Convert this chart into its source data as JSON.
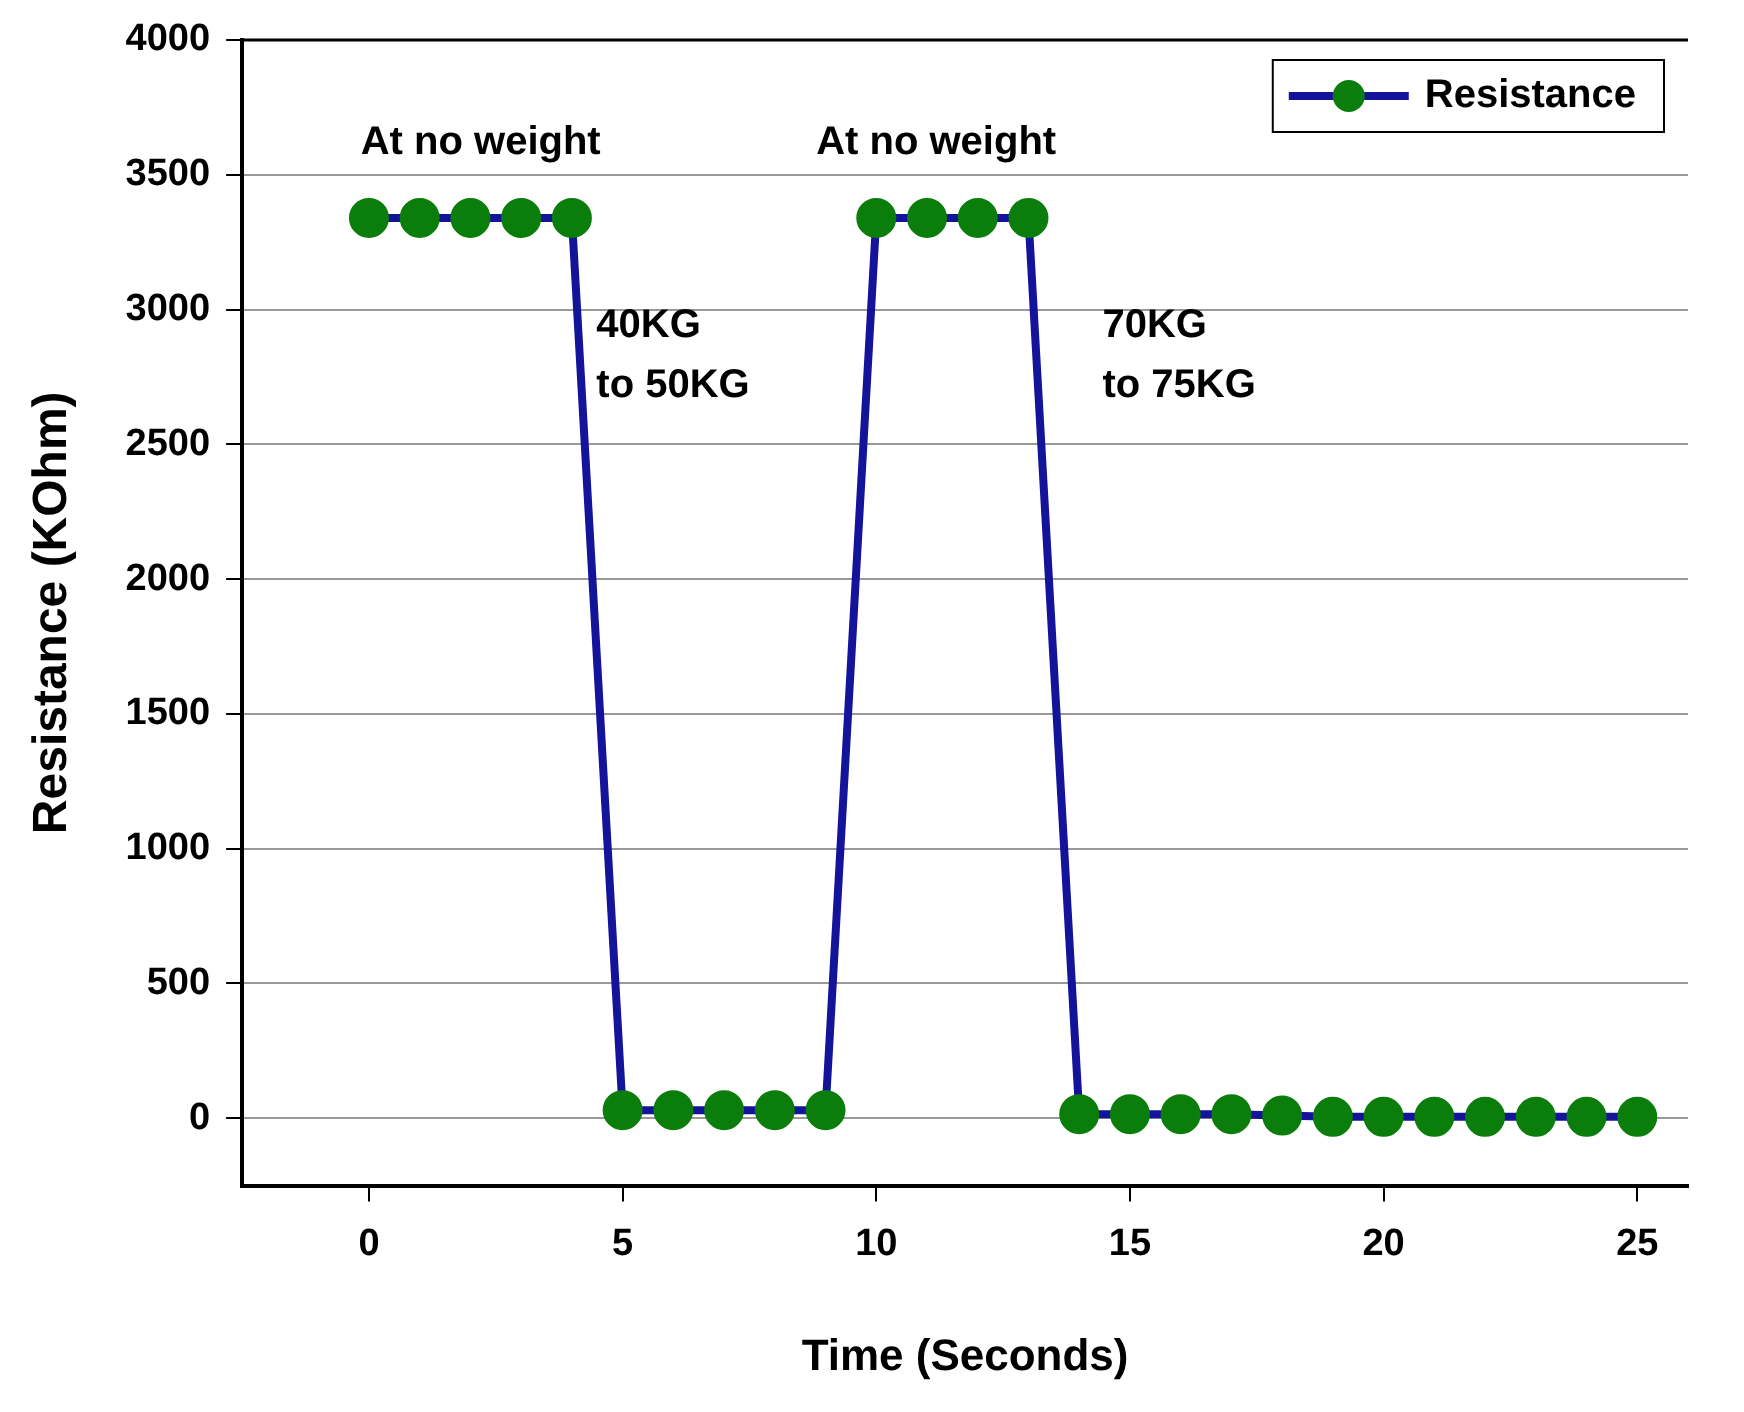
{
  "chart_data": {
    "type": "line",
    "xlabel": "Time (Seconds)",
    "ylabel": "Resistance (KOhm)",
    "x": [
      0,
      1,
      2,
      3,
      4,
      5,
      6,
      7,
      8,
      9,
      10,
      11,
      12,
      13,
      14,
      15,
      16,
      17,
      18,
      19,
      20,
      21,
      22,
      23,
      24,
      25
    ],
    "series": [
      {
        "name": "Resistance",
        "color": "#14149a",
        "colors": [
          "#0a7d0a",
          "#0a7d0a",
          "#0a7d0a",
          "#0a7d0a",
          "#0a7d0a",
          "#0a7d0a",
          "#0a7d0a",
          "#0a7d0a",
          "#0a7d0a",
          "#0a7d0a",
          "#0a7d0a",
          "#0a7d0a",
          "#0a7d0a",
          "#0a7d0a",
          "#0a7d0a",
          "#0a7d0a",
          "#0a7d0a",
          "#0a7d0a",
          "#0a7d0a",
          "#0a7d0a",
          "#0a7d0a",
          "#0a7d0a",
          "#0a7d0a",
          "#0a7d0a",
          "#0a7d0a",
          "#0a7d0a"
        ],
        "values": [
          3340,
          3340,
          3340,
          3340,
          3340,
          30,
          30,
          30,
          30,
          30,
          3340,
          3340,
          3340,
          3340,
          15,
          15,
          15,
          15,
          10,
          5,
          5,
          5,
          5,
          5,
          5,
          5
        ]
      }
    ],
    "xlim": [
      -2.5,
      26
    ],
    "xticks": [
      0,
      5,
      10,
      15,
      20,
      25
    ],
    "ylim": [
      -250,
      4000
    ],
    "yticks": [
      0,
      500,
      1000,
      1500,
      2000,
      2500,
      3000,
      3500,
      4000
    ],
    "grid": "y",
    "legend": "top right",
    "marker": "circle",
    "line_style": "solid",
    "annotations": [
      "At no weight",
      "At no weight",
      "40KG\nto 50KG",
      "70KG\nto 75KG"
    ]
  }
}
